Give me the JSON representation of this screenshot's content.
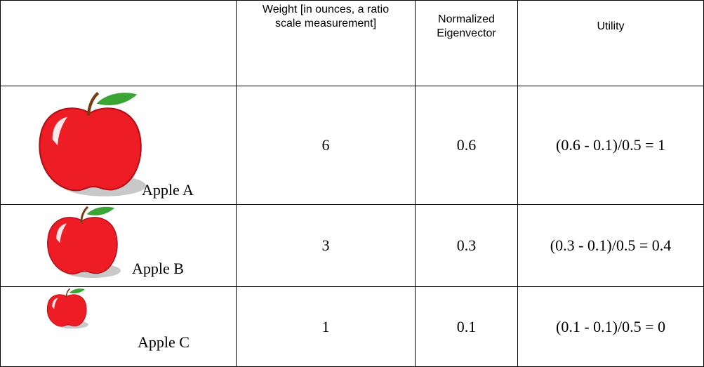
{
  "table": {
    "header": [
      "Weight [in ounces, a ratio scale measurement]",
      "Normalized Eigenvector",
      "Utility"
    ],
    "rows": [
      [
        "Apple A",
        6,
        0.6,
        "(0.6 - 0.1)/0.5 = 1"
      ],
      [
        "Apple B",
        3,
        0.3,
        "(0.3 - 0.1)/0.5 = 0.4"
      ],
      [
        "Apple C",
        1,
        0.1,
        "(0.1 - 0.1)/0.5 = 0"
      ]
    ]
  }
}
